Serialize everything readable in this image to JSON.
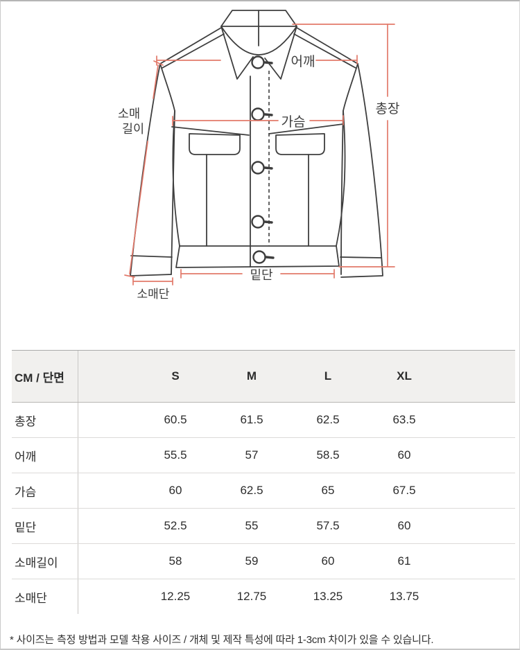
{
  "diagram": {
    "labels": {
      "shoulder": "어깨",
      "total_length": "총장",
      "sleeve_length_line1": "소매",
      "sleeve_length_line2": "길이",
      "chest": "가슴",
      "hem": "밑단",
      "cuff": "소매단"
    },
    "measure_line_color": "#e2796a",
    "outline_color": "#3e3e3e"
  },
  "table": {
    "header": [
      "CM / 단면",
      "S",
      "M",
      "L",
      "XL"
    ],
    "rows": [
      {
        "label": "총장",
        "values": [
          "60.5",
          "61.5",
          "62.5",
          "63.5"
        ]
      },
      {
        "label": "어깨",
        "values": [
          "55.5",
          "57",
          "58.5",
          "60"
        ]
      },
      {
        "label": "가슴",
        "values": [
          "60",
          "62.5",
          "65",
          "67.5"
        ]
      },
      {
        "label": "밑단",
        "values": [
          "52.5",
          "55",
          "57.5",
          "60"
        ]
      },
      {
        "label": "소매길이",
        "values": [
          "58",
          "59",
          "60",
          "61"
        ]
      },
      {
        "label": "소매단",
        "values": [
          "12.25",
          "12.75",
          "13.25",
          "13.75"
        ]
      }
    ]
  },
  "footnote": "* 사이즈는 측정 방법과 모델 착용 사이즈 / 개체 및 제작 특성에 따라 1-3cm 차이가 있을 수 있습니다."
}
